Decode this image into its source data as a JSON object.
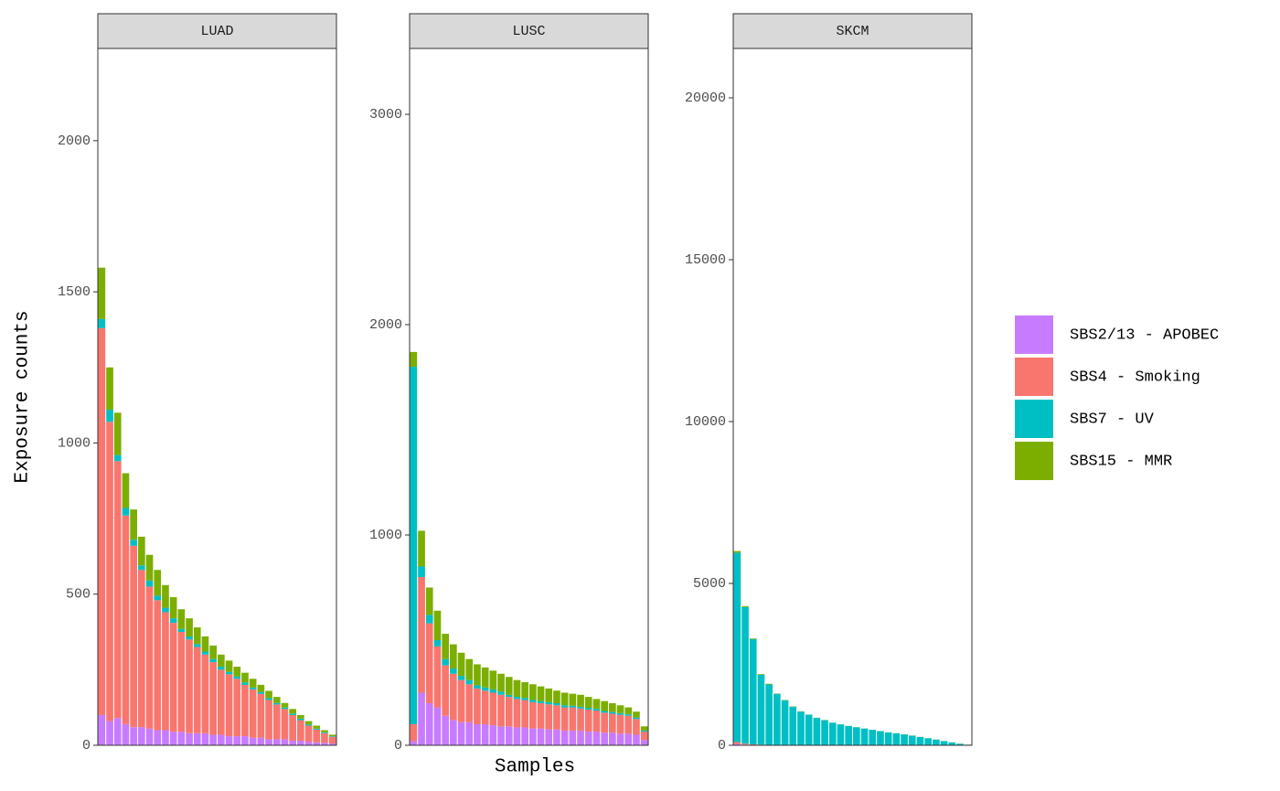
{
  "chart_data": {
    "type": "bar",
    "stacked": true,
    "x_label": "Samples",
    "y_label": "Exposure counts",
    "series": [
      {
        "name": "SBS2/13 - APOBEC",
        "color": "#c77cff"
      },
      {
        "name": "SBS4 - Smoking",
        "color": "#f8766d"
      },
      {
        "name": "SBS7 - UV",
        "color": "#00bfc4"
      },
      {
        "name": "SBS15 - MMR",
        "color": "#7cae00"
      }
    ],
    "panels": [
      {
        "title": "LUAD",
        "ylim": [
          0,
          2305
        ],
        "yticks": [
          0,
          500,
          1000,
          1500,
          2000
        ],
        "values": [
          [
            100,
            80,
            90,
            70,
            60,
            60,
            55,
            50,
            50,
            45,
            45,
            40,
            40,
            40,
            35,
            35,
            30,
            30,
            30,
            25,
            25,
            20,
            20,
            20,
            15,
            15,
            12,
            10,
            8,
            6
          ],
          [
            1280,
            990,
            850,
            690,
            600,
            520,
            470,
            430,
            390,
            360,
            330,
            310,
            285,
            260,
            240,
            215,
            205,
            190,
            170,
            160,
            145,
            130,
            115,
            100,
            85,
            68,
            53,
            42,
            32,
            22
          ],
          [
            30,
            40,
            20,
            25,
            20,
            15,
            20,
            15,
            15,
            15,
            10,
            10,
            10,
            10,
            10,
            10,
            8,
            8,
            8,
            6,
            6,
            6,
            5,
            5,
            5,
            5,
            4,
            3,
            3,
            2
          ],
          [
            170,
            140,
            140,
            115,
            100,
            95,
            85,
            85,
            75,
            70,
            65,
            60,
            55,
            50,
            45,
            40,
            37,
            32,
            32,
            29,
            24,
            24,
            20,
            15,
            15,
            12,
            11,
            10,
            7,
            5
          ]
        ]
      },
      {
        "title": "LUSC",
        "ylim": [
          0,
          3313
        ],
        "yticks": [
          0,
          1000,
          2000,
          3000
        ],
        "values": [
          [
            20,
            250,
            200,
            180,
            140,
            120,
            110,
            110,
            100,
            100,
            95,
            90,
            90,
            85,
            85,
            80,
            80,
            75,
            75,
            70,
            70,
            70,
            65,
            65,
            60,
            60,
            55,
            55,
            50,
            25
          ],
          [
            80,
            550,
            380,
            290,
            240,
            220,
            200,
            180,
            170,
            160,
            155,
            150,
            140,
            135,
            130,
            125,
            120,
            120,
            115,
            110,
            110,
            105,
            105,
            100,
            95,
            90,
            90,
            85,
            75,
            40
          ],
          [
            1700,
            50,
            40,
            30,
            30,
            25,
            20,
            20,
            15,
            15,
            15,
            15,
            10,
            10,
            10,
            10,
            10,
            10,
            10,
            10,
            8,
            8,
            8,
            8,
            8,
            8,
            8,
            7,
            7,
            5
          ],
          [
            70,
            170,
            130,
            140,
            120,
            115,
            110,
            100,
            100,
            95,
            90,
            85,
            85,
            80,
            75,
            75,
            70,
            65,
            60,
            60,
            57,
            57,
            52,
            47,
            47,
            42,
            37,
            33,
            28,
            20
          ]
        ]
      },
      {
        "title": "SKCM",
        "ylim": [
          0,
          21525
        ],
        "yticks": [
          0,
          5000,
          10000,
          15000,
          20000
        ],
        "values": [
          [
            40,
            20,
            10,
            10,
            0,
            0,
            0,
            0,
            0,
            0,
            0,
            0,
            0,
            0,
            0,
            0,
            0,
            0,
            0,
            0,
            0,
            0,
            0,
            0,
            0,
            0,
            0,
            0,
            0,
            0
          ],
          [
            60,
            30,
            20,
            10,
            10,
            0,
            0,
            0,
            0,
            0,
            0,
            0,
            0,
            0,
            0,
            0,
            0,
            0,
            0,
            0,
            0,
            0,
            0,
            0,
            0,
            0,
            0,
            0,
            0,
            0
          ],
          [
            5850,
            4220,
            3250,
            2160,
            1870,
            1590,
            1390,
            1190,
            1040,
            945,
            845,
            776,
            696,
            646,
            597,
            557,
            517,
            477,
            437,
            397,
            367,
            337,
            297,
            257,
            217,
            177,
            127,
            87,
            47,
            18
          ],
          [
            50,
            30,
            20,
            20,
            20,
            10,
            10,
            10,
            10,
            5,
            5,
            4,
            4,
            4,
            3,
            3,
            3,
            3,
            3,
            3,
            3,
            3,
            3,
            3,
            3,
            3,
            3,
            3,
            3,
            2
          ]
        ]
      }
    ]
  }
}
